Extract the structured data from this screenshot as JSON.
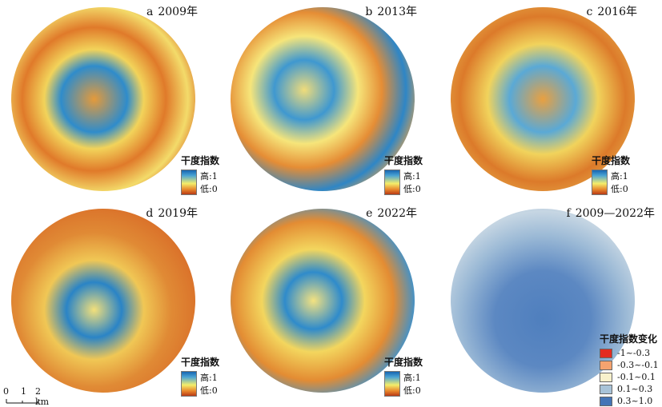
{
  "panels": [
    {
      "letter": "a",
      "year": "2009年"
    },
    {
      "letter": "b",
      "year": "2013年"
    },
    {
      "letter": "c",
      "year": "2016年"
    },
    {
      "letter": "d",
      "year": "2019年"
    },
    {
      "letter": "e",
      "year": "2022年"
    },
    {
      "letter": "f",
      "year": "2009—2022年"
    }
  ],
  "legend": {
    "title": "干度指数",
    "high": "高:1",
    "low": "低:0"
  },
  "change_legend": {
    "title": "干度指数变化",
    "classes": [
      {
        "label": "-1~-0.3",
        "color": "#e32b22"
      },
      {
        "label": "-0.3~-0.1",
        "color": "#f5a36f"
      },
      {
        "label": "-0.1~0.1",
        "color": "#f8f1cc"
      },
      {
        "label": "0.1~0.3",
        "color": "#a8c3d8"
      },
      {
        "label": "0.3~1.0",
        "color": "#4474b6"
      }
    ]
  },
  "scalebar": {
    "t0": "0",
    "t1": "1",
    "t2": "2 km"
  },
  "colors": {
    "index_high": "#1665b0",
    "index_mid": "#f4ee6a",
    "index_low": "#b83a15"
  }
}
